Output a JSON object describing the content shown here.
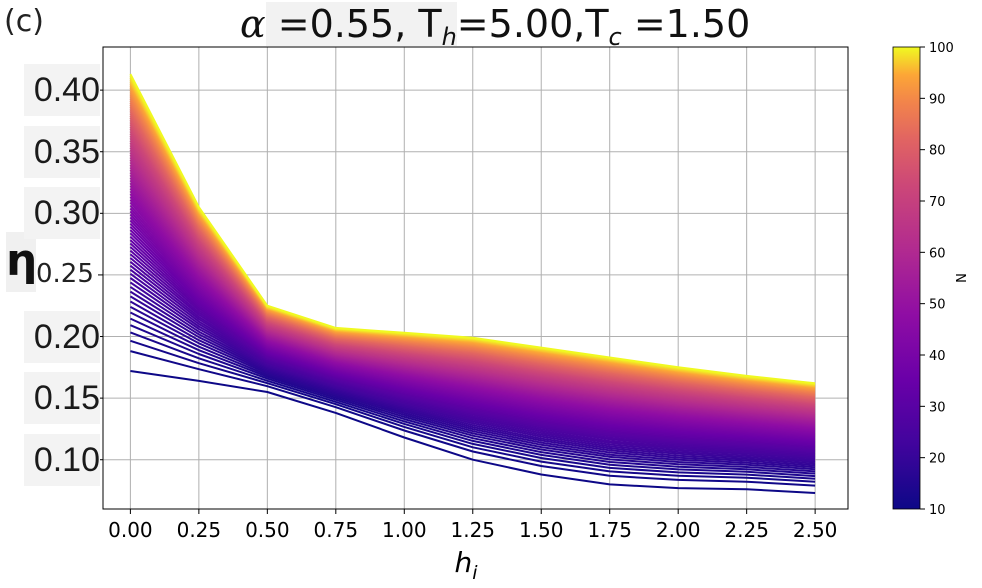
{
  "panel_label": "(c)",
  "title": {
    "alpha_symbol": "α",
    "alpha_text": " =0.55,",
    "th_text": " T",
    "th_sub": "h",
    "th_val": "=5.00,",
    "tc_text": "T",
    "tc_sub": "c",
    "tc_val": " =1.50"
  },
  "chart_data": {
    "type": "line",
    "xlabel": "h",
    "xlabel_sub": "i",
    "ylabel": "η",
    "xlim": [
      -0.1,
      2.62
    ],
    "ylim": [
      0.06,
      0.435
    ],
    "xticks": [
      "0.00",
      "0.25",
      "0.50",
      "0.75",
      "1.00",
      "1.25",
      "1.50",
      "1.75",
      "2.00",
      "2.25",
      "2.50"
    ],
    "yticks": [
      "0.10",
      "0.15",
      "0.20",
      "0.25",
      "0.30",
      "0.35",
      "0.40"
    ],
    "grid": true,
    "colormap": "plasma",
    "colorbar": {
      "label": "N",
      "min": 10,
      "max": 100,
      "ticks": [
        "10",
        "20",
        "30",
        "40",
        "50",
        "60",
        "70",
        "80",
        "90",
        "100"
      ]
    },
    "series_parameter": "N",
    "n_range": [
      10,
      100
    ],
    "n_step": 1,
    "x": [
      0.0,
      0.25,
      0.5,
      0.75,
      1.0,
      1.25,
      1.5,
      1.75,
      2.0,
      2.25,
      2.5
    ],
    "curve_N10": [
      0.172,
      0.164,
      0.155,
      0.138,
      0.118,
      0.1,
      0.088,
      0.08,
      0.077,
      0.076,
      0.073
    ],
    "curve_N100": [
      0.413,
      0.305,
      0.225,
      0.207,
      0.203,
      0.199,
      0.191,
      0.183,
      0.175,
      0.168,
      0.162
    ]
  }
}
